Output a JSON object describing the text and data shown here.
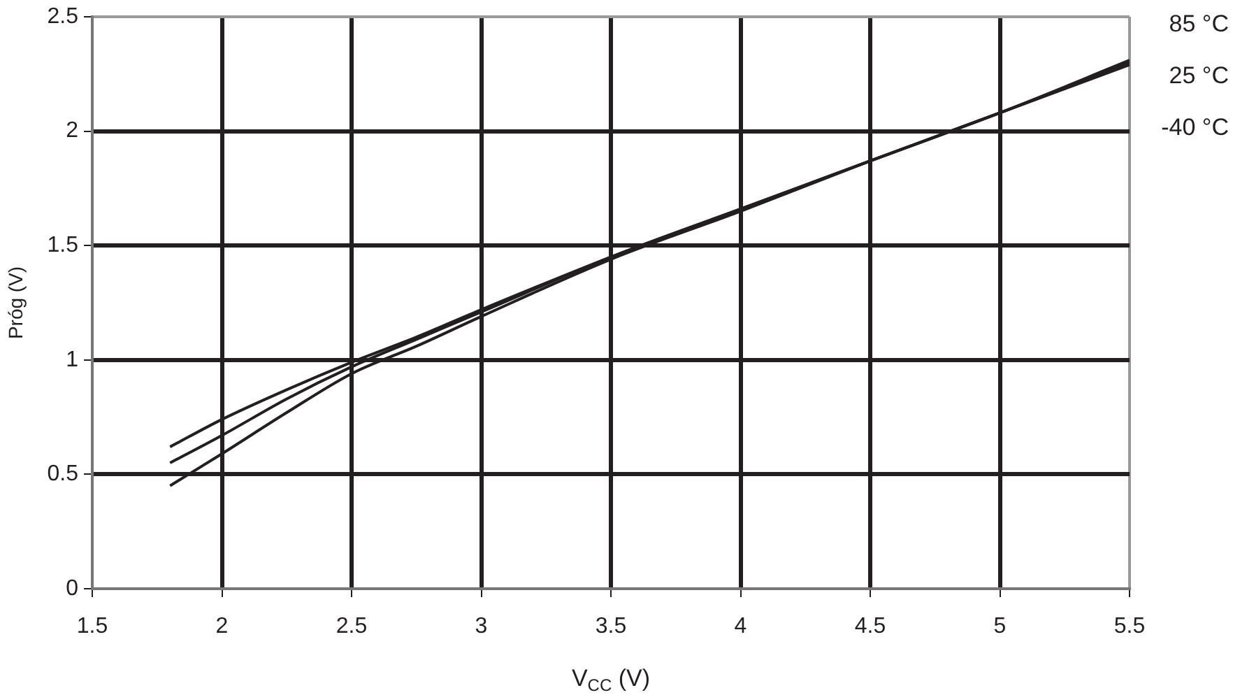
{
  "chart_data": {
    "type": "line",
    "xlabel": "V$_{CC}$ (V)",
    "ylabel": "Próg (V)",
    "x": [
      1.8,
      2,
      2.25,
      2.5,
      2.75,
      3,
      3.5,
      4,
      4.5,
      5,
      5.5
    ],
    "series": [
      {
        "name": "85 °C",
        "color": "#231f20",
        "values": [
          0.62,
          0.74,
          0.87,
          0.99,
          1.1,
          1.22,
          1.45,
          1.66,
          1.87,
          2.08,
          2.31
        ]
      },
      {
        "name": "25 °C",
        "color": "#231f20",
        "values": [
          0.55,
          0.67,
          0.83,
          0.97,
          1.09,
          1.21,
          1.45,
          1.66,
          1.87,
          2.08,
          2.3
        ]
      },
      {
        "name": "-40 °C",
        "color": "#231f20",
        "values": [
          0.45,
          0.59,
          0.77,
          0.94,
          1.06,
          1.19,
          1.44,
          1.65,
          1.87,
          2.08,
          2.29
        ]
      }
    ],
    "xlim": [
      1.5,
      5.5
    ],
    "xticks": [
      1.5,
      2,
      2.5,
      3,
      3.5,
      4,
      4.5,
      5,
      5.5
    ],
    "ylim": [
      0,
      2.5
    ],
    "yticks": [
      0,
      0.5,
      1,
      1.5,
      2,
      2.5
    ],
    "grid": true,
    "legend": "top right",
    "marker": "none"
  }
}
